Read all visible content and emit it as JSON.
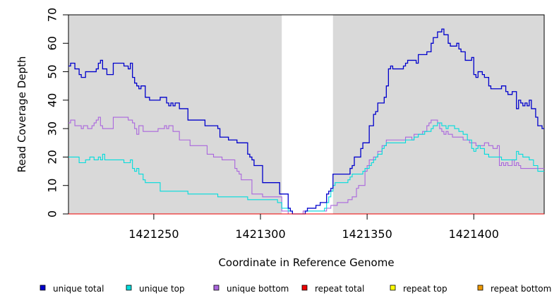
{
  "chart_data": {
    "type": "line",
    "xlabel": "Coordinate in Reference Genome",
    "ylabel": "Read Coverage Depth",
    "xlim": [
      1421210,
      1421433
    ],
    "ylim": [
      0,
      70
    ],
    "x_ticks": [
      1421250,
      1421300,
      1421350,
      1421400
    ],
    "y_ticks": [
      0,
      10,
      20,
      30,
      40,
      50,
      60,
      70
    ],
    "grid": false,
    "legend_position": "bottom",
    "shaded_regions": [
      {
        "x_start": 1421210,
        "x_end": 1421310,
        "color": "#d9d9d9"
      },
      {
        "x_start": 1421334,
        "x_end": 1421433,
        "color": "#d9d9d9"
      }
    ],
    "series": [
      {
        "name": "unique total",
        "color": "#0000cc",
        "points": [
          [
            1421210,
            52
          ],
          [
            1421211,
            53
          ],
          [
            1421213,
            51
          ],
          [
            1421215,
            49
          ],
          [
            1421216,
            48
          ],
          [
            1421218,
            50
          ],
          [
            1421223,
            51
          ],
          [
            1421224,
            53
          ],
          [
            1421225,
            54
          ],
          [
            1421226,
            51
          ],
          [
            1421228,
            49
          ],
          [
            1421231,
            53
          ],
          [
            1421236,
            52
          ],
          [
            1421238,
            51
          ],
          [
            1421239,
            53
          ],
          [
            1421240,
            48
          ],
          [
            1421241,
            46
          ],
          [
            1421242,
            45
          ],
          [
            1421243,
            44
          ],
          [
            1421244,
            45
          ],
          [
            1421246,
            41
          ],
          [
            1421248,
            40
          ],
          [
            1421253,
            41
          ],
          [
            1421256,
            39
          ],
          [
            1421257,
            38
          ],
          [
            1421258,
            39
          ],
          [
            1421259,
            38
          ],
          [
            1421260,
            39
          ],
          [
            1421262,
            37
          ],
          [
            1421266,
            33
          ],
          [
            1421274,
            31
          ],
          [
            1421280,
            30
          ],
          [
            1421281,
            27
          ],
          [
            1421285,
            26
          ],
          [
            1421289,
            25
          ],
          [
            1421294,
            21
          ],
          [
            1421295,
            20
          ],
          [
            1421296,
            19
          ],
          [
            1421297,
            17
          ],
          [
            1421301,
            11
          ],
          [
            1421309,
            7
          ],
          [
            1421313,
            2
          ],
          [
            1421314,
            1
          ],
          [
            1421315,
            0
          ],
          [
            1421321,
            1
          ],
          [
            1421322,
            2
          ],
          [
            1421326,
            3
          ],
          [
            1421328,
            4
          ],
          [
            1421331,
            7
          ],
          [
            1421332,
            8
          ],
          [
            1421333,
            9
          ],
          [
            1421334,
            14
          ],
          [
            1421342,
            16
          ],
          [
            1421343,
            17
          ],
          [
            1421344,
            20
          ],
          [
            1421347,
            23
          ],
          [
            1421348,
            25
          ],
          [
            1421351,
            31
          ],
          [
            1421353,
            35
          ],
          [
            1421354,
            36
          ],
          [
            1421355,
            39
          ],
          [
            1421358,
            41
          ],
          [
            1421359,
            45
          ],
          [
            1421360,
            51
          ],
          [
            1421361,
            52
          ],
          [
            1421362,
            51
          ],
          [
            1421367,
            52
          ],
          [
            1421368,
            53
          ],
          [
            1421369,
            54
          ],
          [
            1421373,
            53
          ],
          [
            1421374,
            56
          ],
          [
            1421378,
            57
          ],
          [
            1421380,
            60
          ],
          [
            1421381,
            62
          ],
          [
            1421383,
            64
          ],
          [
            1421385,
            65
          ],
          [
            1421386,
            63
          ],
          [
            1421388,
            60
          ],
          [
            1421389,
            59
          ],
          [
            1421392,
            60
          ],
          [
            1421393,
            58
          ],
          [
            1421394,
            57
          ],
          [
            1421396,
            54
          ],
          [
            1421399,
            55
          ],
          [
            1421400,
            49
          ],
          [
            1421401,
            48
          ],
          [
            1421402,
            50
          ],
          [
            1421404,
            49
          ],
          [
            1421405,
            48
          ],
          [
            1421407,
            45
          ],
          [
            1421408,
            44
          ],
          [
            1421413,
            45
          ],
          [
            1421415,
            43
          ],
          [
            1421416,
            42
          ],
          [
            1421418,
            43
          ],
          [
            1421420,
            37
          ],
          [
            1421421,
            40
          ],
          [
            1421422,
            39
          ],
          [
            1421423,
            38
          ],
          [
            1421424,
            39
          ],
          [
            1421425,
            38
          ],
          [
            1421426,
            40
          ],
          [
            1421427,
            37
          ],
          [
            1421429,
            34
          ],
          [
            1421430,
            31
          ],
          [
            1421432,
            30
          ]
        ]
      },
      {
        "name": "unique top",
        "color": "#00dddd",
        "points": [
          [
            1421210,
            20
          ],
          [
            1421215,
            18
          ],
          [
            1421218,
            19
          ],
          [
            1421220,
            20
          ],
          [
            1421222,
            19
          ],
          [
            1421224,
            20
          ],
          [
            1421225,
            19
          ],
          [
            1421226,
            21
          ],
          [
            1421227,
            19
          ],
          [
            1421236,
            18
          ],
          [
            1421239,
            19
          ],
          [
            1421240,
            16
          ],
          [
            1421241,
            15
          ],
          [
            1421242,
            16
          ],
          [
            1421243,
            14
          ],
          [
            1421245,
            12
          ],
          [
            1421246,
            11
          ],
          [
            1421253,
            8
          ],
          [
            1421266,
            7
          ],
          [
            1421280,
            6
          ],
          [
            1421294,
            5
          ],
          [
            1421308,
            4
          ],
          [
            1421310,
            2
          ],
          [
            1421313,
            1
          ],
          [
            1421315,
            0
          ],
          [
            1421321,
            1
          ],
          [
            1421330,
            2
          ],
          [
            1421331,
            4
          ],
          [
            1421332,
            6
          ],
          [
            1421333,
            8
          ],
          [
            1421334,
            10
          ],
          [
            1421335,
            11
          ],
          [
            1421341,
            12
          ],
          [
            1421342,
            13
          ],
          [
            1421343,
            14
          ],
          [
            1421348,
            15
          ],
          [
            1421349,
            16
          ],
          [
            1421351,
            17
          ],
          [
            1421352,
            18
          ],
          [
            1421353,
            19
          ],
          [
            1421354,
            20
          ],
          [
            1421355,
            21
          ],
          [
            1421357,
            23
          ],
          [
            1421358,
            24
          ],
          [
            1421359,
            25
          ],
          [
            1421368,
            26
          ],
          [
            1421372,
            27
          ],
          [
            1421374,
            28
          ],
          [
            1421377,
            29
          ],
          [
            1421380,
            30
          ],
          [
            1421381,
            31
          ],
          [
            1421383,
            32
          ],
          [
            1421385,
            31
          ],
          [
            1421387,
            30
          ],
          [
            1421388,
            31
          ],
          [
            1421391,
            30
          ],
          [
            1421393,
            29
          ],
          [
            1421395,
            28
          ],
          [
            1421397,
            26
          ],
          [
            1421399,
            23
          ],
          [
            1421400,
            22
          ],
          [
            1421401,
            23
          ],
          [
            1421402,
            24
          ],
          [
            1421403,
            23
          ],
          [
            1421405,
            21
          ],
          [
            1421407,
            20
          ],
          [
            1421413,
            19
          ],
          [
            1421420,
            22
          ],
          [
            1421421,
            21
          ],
          [
            1421423,
            20
          ],
          [
            1421426,
            19
          ],
          [
            1421428,
            17
          ],
          [
            1421430,
            15
          ]
        ]
      },
      {
        "name": "unique bottom",
        "color": "#aa66dd",
        "points": [
          [
            1421210,
            32
          ],
          [
            1421211,
            33
          ],
          [
            1421213,
            31
          ],
          [
            1421216,
            30
          ],
          [
            1421217,
            31
          ],
          [
            1421219,
            30
          ],
          [
            1421221,
            31
          ],
          [
            1421222,
            32
          ],
          [
            1421223,
            33
          ],
          [
            1421224,
            34
          ],
          [
            1421225,
            31
          ],
          [
            1421226,
            30
          ],
          [
            1421231,
            34
          ],
          [
            1421238,
            33
          ],
          [
            1421240,
            32
          ],
          [
            1421241,
            30
          ],
          [
            1421242,
            28
          ],
          [
            1421243,
            31
          ],
          [
            1421245,
            29
          ],
          [
            1421252,
            30
          ],
          [
            1421255,
            31
          ],
          [
            1421256,
            30
          ],
          [
            1421257,
            31
          ],
          [
            1421259,
            29
          ],
          [
            1421262,
            26
          ],
          [
            1421267,
            24
          ],
          [
            1421275,
            21
          ],
          [
            1421278,
            20
          ],
          [
            1421282,
            19
          ],
          [
            1421288,
            16
          ],
          [
            1421289,
            15
          ],
          [
            1421290,
            14
          ],
          [
            1421291,
            12
          ],
          [
            1421296,
            7
          ],
          [
            1421301,
            6
          ],
          [
            1421310,
            1
          ],
          [
            1421313,
            0
          ],
          [
            1421320,
            1
          ],
          [
            1421331,
            2
          ],
          [
            1421333,
            3
          ],
          [
            1421336,
            4
          ],
          [
            1421341,
            5
          ],
          [
            1421343,
            6
          ],
          [
            1421345,
            9
          ],
          [
            1421346,
            10
          ],
          [
            1421349,
            15
          ],
          [
            1421350,
            17
          ],
          [
            1421351,
            19
          ],
          [
            1421353,
            20
          ],
          [
            1421355,
            22
          ],
          [
            1421357,
            24
          ],
          [
            1421359,
            26
          ],
          [
            1421368,
            27
          ],
          [
            1421371,
            26
          ],
          [
            1421372,
            28
          ],
          [
            1421376,
            29
          ],
          [
            1421378,
            31
          ],
          [
            1421379,
            32
          ],
          [
            1421380,
            33
          ],
          [
            1421383,
            32
          ],
          [
            1421384,
            30
          ],
          [
            1421385,
            29
          ],
          [
            1421386,
            28
          ],
          [
            1421387,
            29
          ],
          [
            1421388,
            28
          ],
          [
            1421390,
            27
          ],
          [
            1421395,
            26
          ],
          [
            1421398,
            25
          ],
          [
            1421401,
            24
          ],
          [
            1421405,
            25
          ],
          [
            1421407,
            24
          ],
          [
            1421409,
            23
          ],
          [
            1421411,
            24
          ],
          [
            1421412,
            17
          ],
          [
            1421413,
            18
          ],
          [
            1421414,
            17
          ],
          [
            1421415,
            18
          ],
          [
            1421416,
            17
          ],
          [
            1421418,
            19
          ],
          [
            1421419,
            17
          ],
          [
            1421420,
            18
          ],
          [
            1421421,
            17
          ],
          [
            1421422,
            16
          ]
        ]
      },
      {
        "name": "repeat total",
        "color": "#ee0000",
        "points": [
          [
            1421210,
            0
          ],
          [
            1421433,
            0
          ]
        ]
      },
      {
        "name": "repeat top",
        "color": "#ffff00",
        "points": [
          [
            1421210,
            0
          ],
          [
            1421433,
            0
          ]
        ]
      },
      {
        "name": "repeat bottom",
        "color": "#ee9900",
        "points": [
          [
            1421210,
            0
          ],
          [
            1421433,
            0
          ]
        ]
      }
    ]
  }
}
